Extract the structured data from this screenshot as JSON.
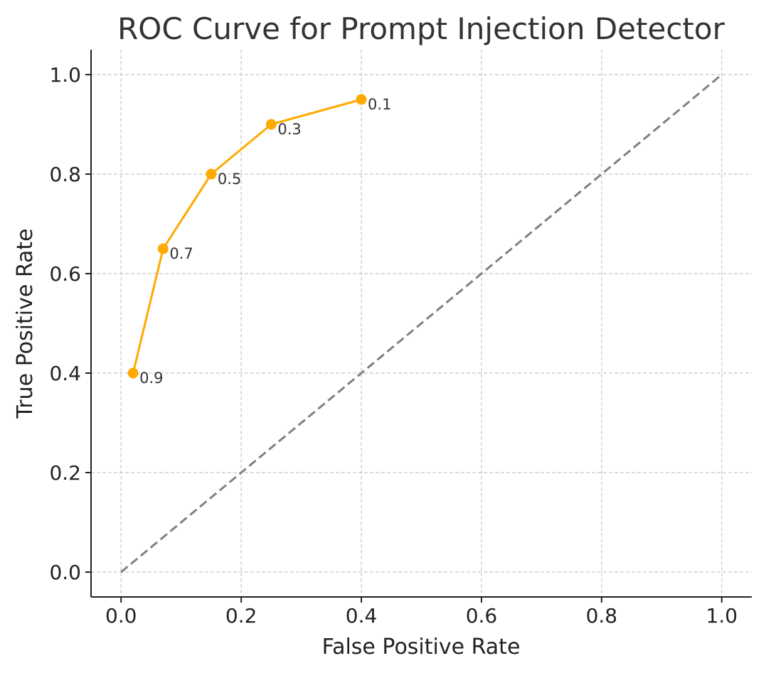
{
  "chart_data": {
    "type": "line",
    "title": "ROC Curve for Prompt Injection Detector",
    "xlabel": "False Positive Rate",
    "ylabel": "True Positive Rate",
    "xlim": [
      -0.05,
      1.05
    ],
    "ylim": [
      -0.05,
      1.05
    ],
    "grid": true,
    "x_ticks": [
      0.0,
      0.2,
      0.4,
      0.6,
      0.8,
      1.0
    ],
    "y_ticks": [
      0.0,
      0.2,
      0.4,
      0.6,
      0.8,
      1.0
    ],
    "x_tick_labels": [
      "0.0",
      "0.2",
      "0.4",
      "0.6",
      "0.8",
      "1.0"
    ],
    "y_tick_labels": [
      "0.0",
      "0.2",
      "0.4",
      "0.6",
      "0.8",
      "1.0"
    ],
    "series": [
      {
        "color": "#FFAA00",
        "marker": "circle",
        "line_style": "solid",
        "x": [
          0.02,
          0.07,
          0.15,
          0.25,
          0.4
        ],
        "y": [
          0.4,
          0.65,
          0.8,
          0.9,
          0.95
        ],
        "point_labels": [
          "0.9",
          "0.7",
          "0.5",
          "0.3",
          "0.1"
        ]
      },
      {
        "color": "#808080",
        "line_style": "dashed",
        "x": [
          0.0,
          1.0
        ],
        "y": [
          0.0,
          1.0
        ]
      }
    ]
  }
}
